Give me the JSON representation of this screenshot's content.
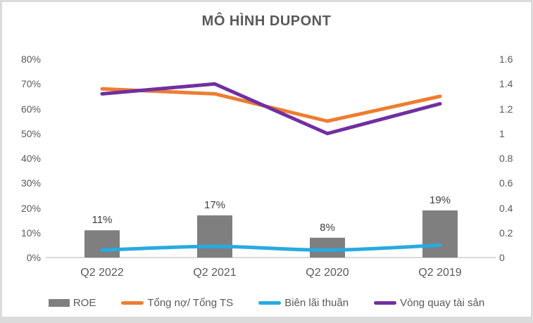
{
  "chart_data": {
    "type": "combo-bar-line",
    "title": "MÔ HÌNH DUPONT",
    "categories": [
      "Q2 2022",
      "Q2 2021",
      "Q2 2020",
      "Q2 2019"
    ],
    "series": [
      {
        "name": "ROE",
        "type": "bar",
        "axis": "left",
        "color": "#7F7F7F",
        "values": [
          11,
          17,
          8,
          19
        ],
        "data_labels": [
          "11%",
          "17%",
          "8%",
          "19%"
        ]
      },
      {
        "name": "Tổng nợ/ Tổng TS",
        "type": "line",
        "axis": "left",
        "color": "#ED7D31",
        "smooth": false,
        "values": [
          68,
          66,
          55,
          65
        ]
      },
      {
        "name": "Biên lãi thuần",
        "type": "line",
        "axis": "left",
        "color": "#27AAE1",
        "smooth": true,
        "values": [
          3,
          4.5,
          3,
          5
        ]
      },
      {
        "name": "Vòng quay tài sản",
        "type": "line",
        "axis": "right",
        "color": "#7030A0",
        "smooth": false,
        "values": [
          1.32,
          1.4,
          1.0,
          1.24
        ]
      }
    ],
    "left_axis": {
      "min": 0,
      "max": 80,
      "ticks": [
        "80%",
        "70%",
        "60%",
        "50%",
        "40%",
        "30%",
        "20%",
        "10%",
        "0%"
      ]
    },
    "right_axis": {
      "min": 0,
      "max": 1.6,
      "ticks": [
        "1.6",
        "1.4",
        "1.2",
        "1",
        "0.8",
        "0.6",
        "0.4",
        "0.2",
        "0"
      ]
    },
    "grid": false,
    "legend_position": "bottom",
    "baseline_color": "#d9d9d9",
    "title_color": "#595959",
    "axis_text_color": "#595959"
  }
}
